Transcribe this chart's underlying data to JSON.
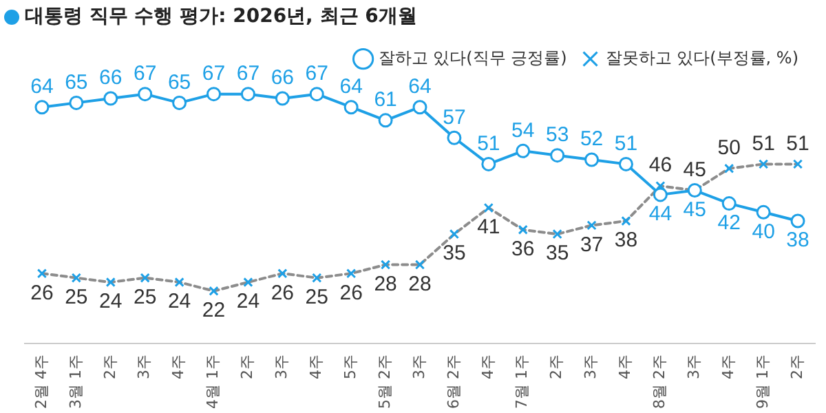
{
  "chart_data": {
    "type": "line",
    "title": "대통령 직무 수행 평가: 2026년, 최근 6개월",
    "categories": [
      "2월 4주",
      "3월 1주",
      "2주",
      "3주",
      "4주",
      "4월 1주",
      "2주",
      "3주",
      "4주",
      "5주",
      "5월 2주",
      "3주",
      "6월 2주",
      "4주",
      "7월 1주",
      "2주",
      "3주",
      "4주",
      "8월 2주",
      "3주",
      "4주",
      "9월 1주",
      "2주"
    ],
    "series": [
      {
        "name": "잘하고 있다(직무 긍정률)",
        "color": "#1ea0e6",
        "marker": "circle",
        "line_style": "solid",
        "values": [
          64,
          65,
          66,
          67,
          65,
          67,
          67,
          66,
          67,
          64,
          61,
          64,
          57,
          51,
          54,
          53,
          52,
          51,
          44,
          45,
          42,
          40,
          38
        ]
      },
      {
        "name": "잘못하고 있다(부정률, %)",
        "color": "#8c8c8c",
        "marker": "cross",
        "line_style": "dashed",
        "values": [
          26,
          25,
          24,
          25,
          24,
          22,
          24,
          26,
          25,
          26,
          28,
          28,
          35,
          41,
          36,
          35,
          37,
          38,
          46,
          45,
          50,
          51,
          51
        ]
      }
    ],
    "data_labels": true,
    "legend": "top right",
    "grid": false
  }
}
